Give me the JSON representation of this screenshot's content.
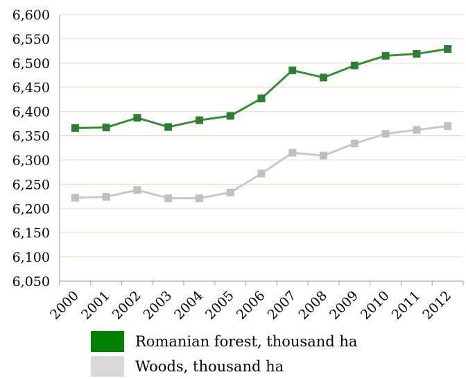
{
  "chart_data": {
    "type": "line",
    "title": "",
    "xlabel": "",
    "ylabel": "",
    "x": [
      "2000",
      "2001",
      "2002",
      "2003",
      "2004",
      "2005",
      "2006",
      "2007",
      "2008",
      "2009",
      "2010",
      "2011",
      "2012"
    ],
    "ylim": [
      6050,
      6600
    ],
    "yticks": [
      "6,050",
      "6,100",
      "6,150",
      "6,200",
      "6,250",
      "6,300",
      "6,350",
      "6,400",
      "6,450",
      "6,500",
      "6,550",
      "6,600"
    ],
    "ytick_values": [
      6050,
      6100,
      6150,
      6200,
      6250,
      6300,
      6350,
      6400,
      6450,
      6500,
      6550,
      6600
    ],
    "grid": true,
    "legend_position": "bottom",
    "series": [
      {
        "name": "Romanian forest, thousand ha",
        "color": "#3a8a3a",
        "marker_color": "#2e7d32",
        "swatch_color": "#008000",
        "values": [
          6366,
          6367,
          6387,
          6368,
          6382,
          6391,
          6427,
          6485,
          6470,
          6495,
          6515,
          6519,
          6529
        ]
      },
      {
        "name": "Woods, thousand ha",
        "color": "#c8c8c8",
        "marker_color": "#c0c0c0",
        "swatch_color": "#d9d9d9",
        "values": [
          6222,
          6224,
          6238,
          6221,
          6221,
          6233,
          6272,
          6315,
          6309,
          6334,
          6354,
          6362,
          6370
        ]
      }
    ]
  }
}
